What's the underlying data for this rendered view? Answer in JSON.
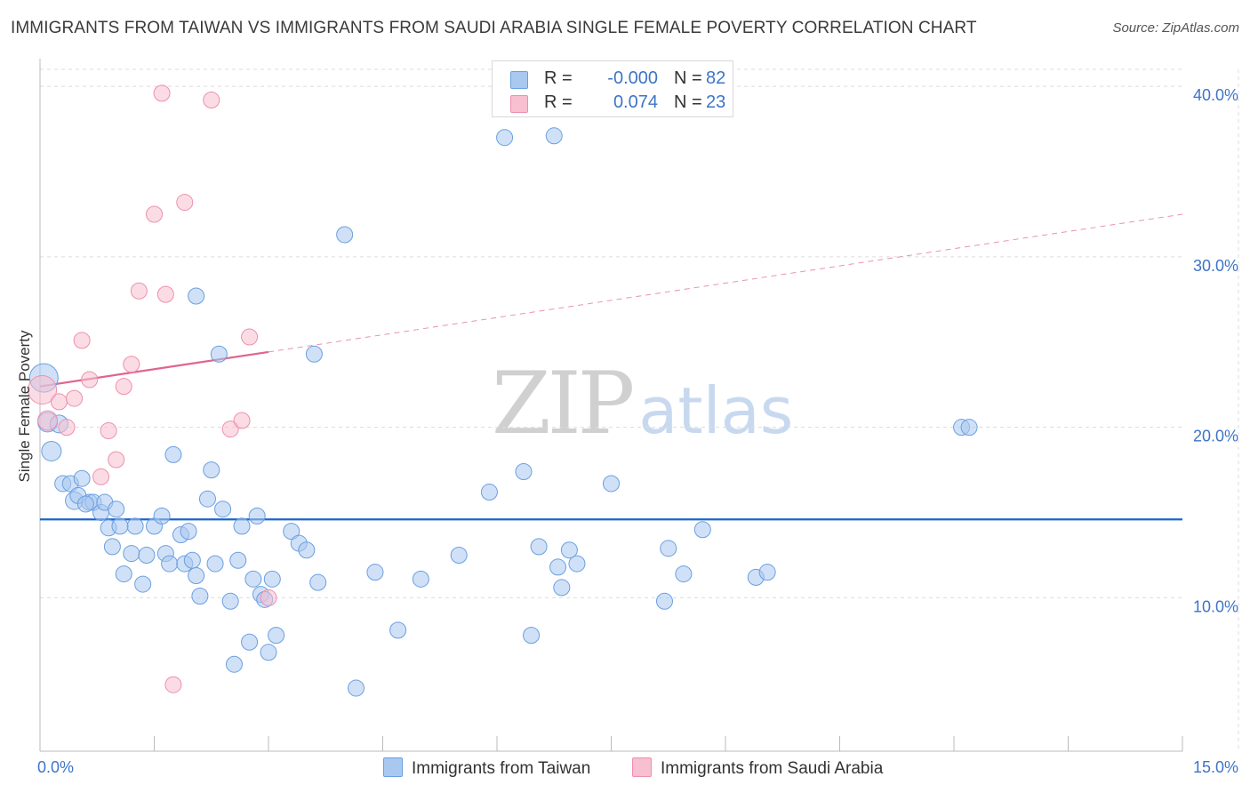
{
  "title": "IMMIGRANTS FROM TAIWAN VS IMMIGRANTS FROM SAUDI ARABIA SINGLE FEMALE POVERTY CORRELATION CHART",
  "source": "Source: ZipAtlas.com",
  "watermark": {
    "zip": "ZIP",
    "atlas": "atlas"
  },
  "legend": {
    "rows": [
      {
        "r_label": "R =",
        "r_value": "-0.000",
        "n_label": "N =",
        "n_value": "82"
      },
      {
        "r_label": "R =",
        "r_value": "0.074",
        "n_label": "N =",
        "n_value": "23"
      }
    ]
  },
  "bottom_legend": {
    "taiwan": "Immigrants from Taiwan",
    "saudi": "Immigrants from Saudi Arabia"
  },
  "colors": {
    "taiwan_fill": "#a9c8f0",
    "taiwan_stroke": "#6a9fe0",
    "taiwan_line": "#1a66c9",
    "saudi_fill": "#f7bfd0",
    "saudi_stroke": "#ee8fae",
    "saudi_line": "#e0648f",
    "tick_text": "#3d74c8",
    "grid": "#dcdcdc"
  },
  "chart_data": {
    "type": "scatter",
    "title": "IMMIGRANTS FROM TAIWAN VS IMMIGRANTS FROM SAUDI ARABIA SINGLE FEMALE POVERTY CORRELATION CHART",
    "xlabel": "",
    "ylabel": "Single Female Poverty",
    "xlim": [
      0,
      15
    ],
    "ylim": [
      1,
      41
    ],
    "x_tick_labels": [
      {
        "value": 0,
        "label": "0.0%"
      },
      {
        "value": 15,
        "label": "15.0%"
      }
    ],
    "y_ticks": [
      {
        "value": 10,
        "label": "10.0%"
      },
      {
        "value": 20,
        "label": "20.0%"
      },
      {
        "value": 30,
        "label": "30.0%"
      },
      {
        "value": 40,
        "label": "40.0%"
      }
    ],
    "series": [
      {
        "name": "Immigrants from Taiwan",
        "R": -0.0,
        "N": 82,
        "trend": {
          "x0": 0,
          "y0": 14.6,
          "x1": 15,
          "y1": 14.6,
          "dashed_from": null
        },
        "points": [
          [
            0.05,
            22.9,
            16
          ],
          [
            0.1,
            20.3,
            11
          ],
          [
            0.15,
            18.6,
            11
          ],
          [
            0.25,
            20.2,
            10
          ],
          [
            0.3,
            16.7,
            9
          ],
          [
            0.4,
            16.7,
            9
          ],
          [
            0.45,
            15.7,
            10
          ],
          [
            0.5,
            16.0,
            9
          ],
          [
            0.55,
            17.0,
            9
          ],
          [
            0.65,
            15.6,
            9
          ],
          [
            0.7,
            15.6,
            9
          ],
          [
            0.8,
            15.0,
            9
          ],
          [
            0.85,
            15.6,
            9
          ],
          [
            0.9,
            14.1,
            9
          ],
          [
            0.95,
            13.0,
            9
          ],
          [
            1.0,
            15.2,
            9
          ],
          [
            1.1,
            11.4,
            9
          ],
          [
            1.2,
            12.6,
            9
          ],
          [
            1.25,
            14.2,
            9
          ],
          [
            1.35,
            10.8,
            9
          ],
          [
            1.4,
            12.5,
            9
          ],
          [
            1.5,
            14.2,
            9
          ],
          [
            1.6,
            14.8,
            9
          ],
          [
            1.65,
            12.6,
            9
          ],
          [
            1.7,
            12.0,
            9
          ],
          [
            1.75,
            18.4,
            9
          ],
          [
            1.85,
            13.7,
            9
          ],
          [
            1.9,
            12.0,
            9
          ],
          [
            1.95,
            13.9,
            9
          ],
          [
            2.0,
            12.2,
            9
          ],
          [
            2.05,
            11.3,
            9
          ],
          [
            2.05,
            27.7,
            9
          ],
          [
            2.1,
            10.1,
            9
          ],
          [
            2.2,
            15.8,
            9
          ],
          [
            2.25,
            17.5,
            9
          ],
          [
            2.3,
            12.0,
            9
          ],
          [
            2.35,
            24.3,
            9
          ],
          [
            2.4,
            15.2,
            9
          ],
          [
            2.5,
            9.8,
            9
          ],
          [
            2.55,
            6.1,
            9
          ],
          [
            2.6,
            12.2,
            9
          ],
          [
            2.65,
            14.2,
            9
          ],
          [
            2.75,
            7.4,
            9
          ],
          [
            2.8,
            11.1,
            9
          ],
          [
            2.85,
            14.8,
            9
          ],
          [
            2.9,
            10.2,
            9
          ],
          [
            2.95,
            9.9,
            9
          ],
          [
            3.0,
            6.8,
            9
          ],
          [
            3.05,
            11.1,
            9
          ],
          [
            3.1,
            7.8,
            9
          ],
          [
            3.3,
            13.9,
            9
          ],
          [
            3.4,
            13.2,
            9
          ],
          [
            3.5,
            12.8,
            9
          ],
          [
            3.6,
            24.3,
            9
          ],
          [
            3.65,
            10.9,
            9
          ],
          [
            4.0,
            31.3,
            9
          ],
          [
            4.15,
            4.7,
            9
          ],
          [
            4.4,
            11.5,
            9
          ],
          [
            4.7,
            8.1,
            9
          ],
          [
            5.0,
            11.1,
            9
          ],
          [
            5.5,
            12.5,
            9
          ],
          [
            5.9,
            16.2,
            9
          ],
          [
            6.1,
            37.0,
            9
          ],
          [
            6.35,
            17.4,
            9
          ],
          [
            6.45,
            7.8,
            9
          ],
          [
            6.55,
            13.0,
            9
          ],
          [
            6.75,
            37.1,
            9
          ],
          [
            6.8,
            11.8,
            9
          ],
          [
            6.85,
            10.6,
            9
          ],
          [
            6.95,
            12.8,
            9
          ],
          [
            7.05,
            12.0,
            9
          ],
          [
            7.5,
            16.7,
            9
          ],
          [
            8.2,
            9.8,
            9
          ],
          [
            8.25,
            12.9,
            9
          ],
          [
            8.45,
            11.4,
            9
          ],
          [
            8.7,
            14.0,
            9
          ],
          [
            9.4,
            11.2,
            9
          ],
          [
            9.55,
            11.5,
            9
          ],
          [
            12.1,
            20.0,
            9
          ],
          [
            12.2,
            20.0,
            9
          ],
          [
            0.6,
            15.5,
            9
          ],
          [
            1.05,
            14.2,
            9
          ]
        ]
      },
      {
        "name": "Immigrants from Saudi Arabia",
        "R": 0.074,
        "N": 23,
        "trend": {
          "x0": 0,
          "y0": 22.4,
          "x1": 15,
          "y1": 32.5,
          "dashed_from": 3.0
        },
        "points": [
          [
            0.03,
            22.2,
            16
          ],
          [
            0.1,
            20.4,
            11
          ],
          [
            0.25,
            21.5,
            9
          ],
          [
            0.35,
            20.0,
            9
          ],
          [
            0.45,
            21.7,
            9
          ],
          [
            0.55,
            25.1,
            9
          ],
          [
            0.65,
            22.8,
            9
          ],
          [
            0.8,
            17.1,
            9
          ],
          [
            0.9,
            19.8,
            9
          ],
          [
            1.0,
            18.1,
            9
          ],
          [
            1.1,
            22.4,
            9
          ],
          [
            1.2,
            23.7,
            9
          ],
          [
            1.3,
            28.0,
            9
          ],
          [
            1.5,
            32.5,
            9
          ],
          [
            1.6,
            39.6,
            9
          ],
          [
            1.65,
            27.8,
            9
          ],
          [
            1.75,
            4.9,
            9
          ],
          [
            1.9,
            33.2,
            9
          ],
          [
            2.25,
            39.2,
            9
          ],
          [
            2.5,
            19.9,
            9
          ],
          [
            2.65,
            20.4,
            9
          ],
          [
            2.75,
            25.3,
            9
          ],
          [
            3.0,
            10.0,
            9
          ]
        ]
      }
    ]
  }
}
